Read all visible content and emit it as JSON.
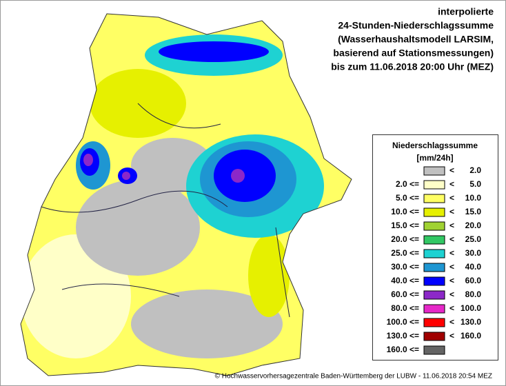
{
  "header": {
    "lines": [
      "interpolierte",
      "24-Stunden-Niederschlagssumme",
      "(Wasserhaushaltsmodell LARSIM,",
      "basierend auf Stationsmessungen)",
      "bis zum 11.06.2018 20:00 Uhr (MEZ)"
    ]
  },
  "legend": {
    "title": [
      "Niederschlagssumme",
      "[mm/24h]"
    ],
    "items": [
      {
        "color": "#c0c0c0",
        "upper_op": "<",
        "upper": "2.0"
      },
      {
        "lower": "2.0 <=",
        "color": "#ffffc8",
        "upper_op": "<",
        "upper": "5.0"
      },
      {
        "lower": "5.0 <=",
        "color": "#ffff64",
        "upper_op": "<",
        "upper": "10.0"
      },
      {
        "lower": "10.0 <=",
        "color": "#e6f000",
        "upper_op": "<",
        "upper": "15.0"
      },
      {
        "lower": "15.0 <=",
        "color": "#a0d232",
        "upper_op": "<",
        "upper": "20.0"
      },
      {
        "lower": "20.0 <=",
        "color": "#32c864",
        "upper_op": "<",
        "upper": "25.0"
      },
      {
        "lower": "25.0 <=",
        "color": "#1ed2d2",
        "upper_op": "<",
        "upper": "30.0"
      },
      {
        "lower": "30.0 <=",
        "color": "#1e96d2",
        "upper_op": "<",
        "upper": "40.0"
      },
      {
        "lower": "40.0 <=",
        "color": "#0000ff",
        "upper_op": "<",
        "upper": "60.0"
      },
      {
        "lower": "60.0 <=",
        "color": "#8c28c8",
        "upper_op": "<",
        "upper": "80.0"
      },
      {
        "lower": "80.0 <=",
        "color": "#e628c8",
        "upper_op": "<",
        "upper": "100.0"
      },
      {
        "lower": "100.0 <=",
        "color": "#ff0000",
        "upper_op": "<",
        "upper": "130.0"
      },
      {
        "lower": "130.0 <=",
        "color": "#a00000",
        "upper_op": "<",
        "upper": "160.0"
      },
      {
        "lower": "160.0 <=",
        "color": "#646464"
      }
    ]
  },
  "footer": {
    "text": "© Hochwasservorhersagezentrale Baden-Württemberg der LUBW - 11.06.2018 20:54 MEZ"
  }
}
